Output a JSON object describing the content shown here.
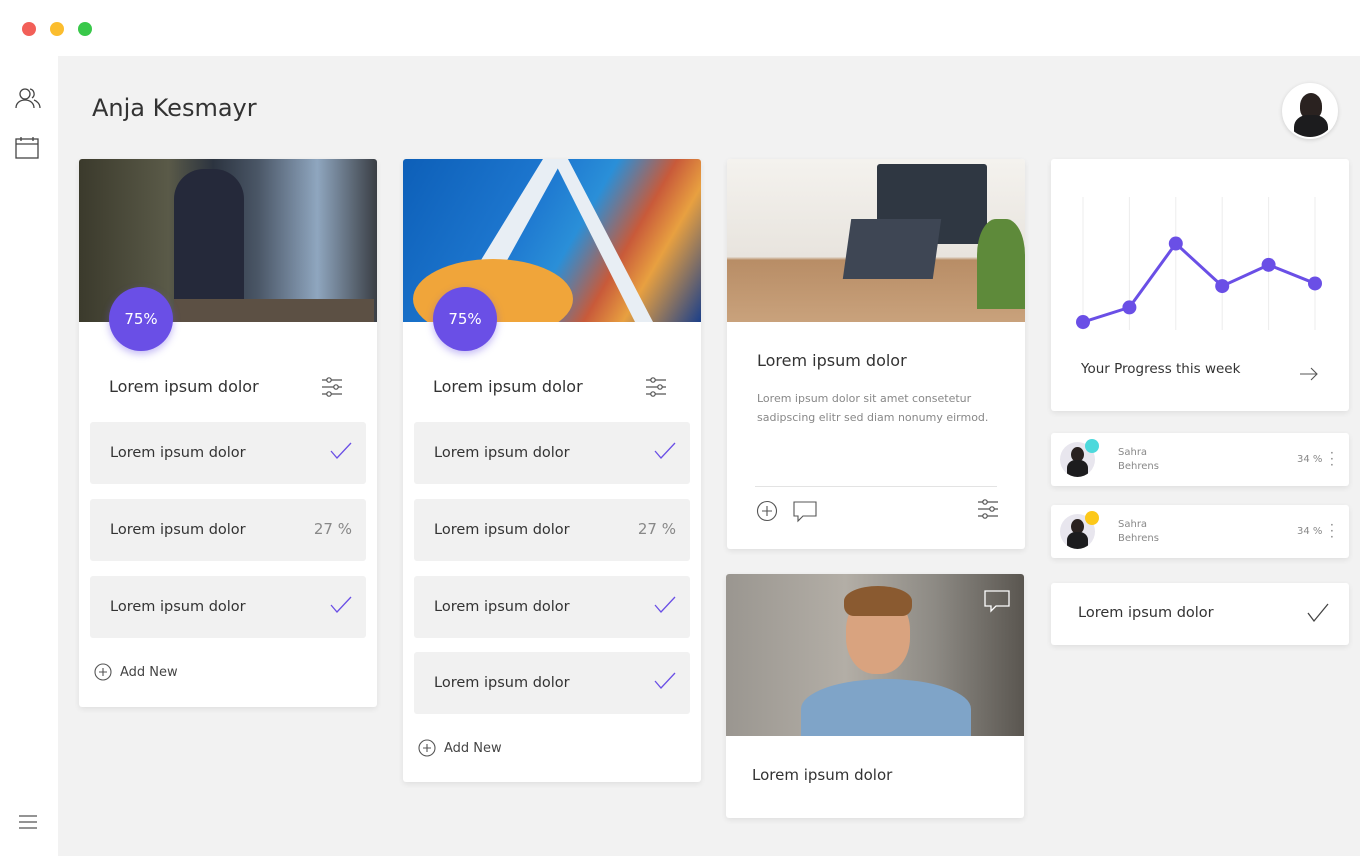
{
  "window": {
    "controls": [
      "close",
      "minimize",
      "maximize"
    ],
    "colors": {
      "close": "#f25f58",
      "minimize": "#fbbd2e",
      "maximize": "#39c84a"
    }
  },
  "sidebar": {
    "icons": [
      "users-icon",
      "calendar-icon",
      "menu-icon"
    ]
  },
  "header": {
    "title": "Anja Kesmayr"
  },
  "accent": "#6a4fe6",
  "cards": [
    {
      "badge": "75%",
      "title": "Lorem ipsum dolor",
      "items": [
        {
          "label": "Lorem ipsum dolor",
          "status": "check"
        },
        {
          "label": "Lorem ipsum dolor",
          "value": "27 %"
        },
        {
          "label": "Lorem ipsum dolor",
          "status": "check"
        }
      ],
      "add_label": "Add New"
    },
    {
      "badge": "75%",
      "title": "Lorem ipsum dolor",
      "items": [
        {
          "label": "Lorem ipsum dolor",
          "status": "check"
        },
        {
          "label": "Lorem ipsum dolor",
          "value": "27 %"
        },
        {
          "label": "Lorem ipsum dolor",
          "status": "check"
        },
        {
          "label": "Lorem ipsum dolor",
          "status": "check"
        }
      ],
      "add_label": "Add New"
    }
  ],
  "article": {
    "title": "Lorem ipsum dolor",
    "body": "Lorem ipsum dolor sit amet consetetur sadipscing elitr sed diam nonumy eirmod."
  },
  "video_card": {
    "title": "Lorem ipsum dolor"
  },
  "progress": {
    "label": "Your Progress this week"
  },
  "chart_data": {
    "type": "line",
    "values": [
      0.6,
      1.7,
      6.5,
      3.3,
      4.9,
      3.5
    ],
    "ylim": [
      0,
      10
    ],
    "grid": "vertical",
    "color": "#6a4fe6"
  },
  "people": [
    {
      "first": "Sahra",
      "last": "Behrens",
      "value": "34 %",
      "status_color": "#4dd9dc"
    },
    {
      "first": "Sahra",
      "last": "Behrens",
      "value": "34 %",
      "status_color": "#fcc81a"
    }
  ],
  "task": {
    "label": "Lorem ipsum dolor"
  }
}
